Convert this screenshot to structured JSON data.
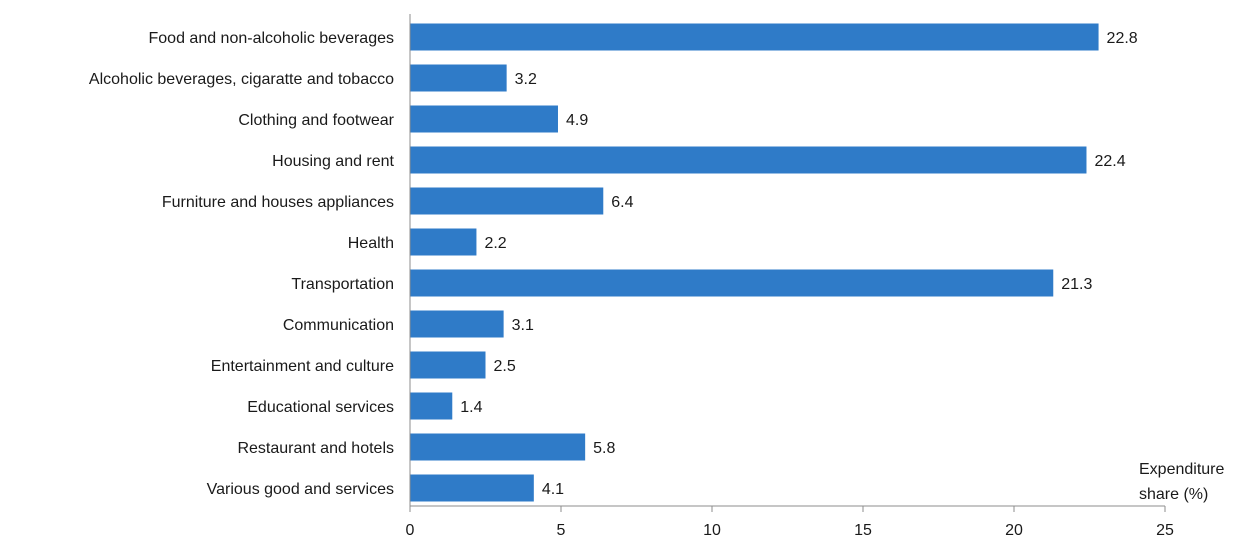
{
  "chart_data": {
    "type": "bar",
    "orientation": "horizontal",
    "categories": [
      "Food and non-alcoholic beverages",
      "Alcoholic beverages, cigaratte and tobacco",
      "Clothing and footwear",
      "Housing and rent",
      "Furniture and houses appliances",
      "Health",
      "Transportation",
      "Communication",
      "Entertainment and culture",
      "Educational services",
      "Restaurant and hotels",
      "Various good and services"
    ],
    "values": [
      22.8,
      3.2,
      4.9,
      22.4,
      6.4,
      2.2,
      21.3,
      3.1,
      2.5,
      1.4,
      5.8,
      4.1
    ],
    "data_labels": [
      "22.8",
      "3.2",
      "4.9",
      "22.4",
      "6.4",
      "2.2",
      "21.3",
      "3.1",
      "2.5",
      "1.4",
      "5.8",
      "4.1"
    ],
    "xlim": [
      0,
      25
    ],
    "x_ticks": [
      0,
      5,
      10,
      15,
      20,
      25
    ],
    "xlabel_lines": [
      "Expenditure",
      "share (%)"
    ],
    "grid": false,
    "legend": "none",
    "bar_color": "#2F7BC8"
  }
}
